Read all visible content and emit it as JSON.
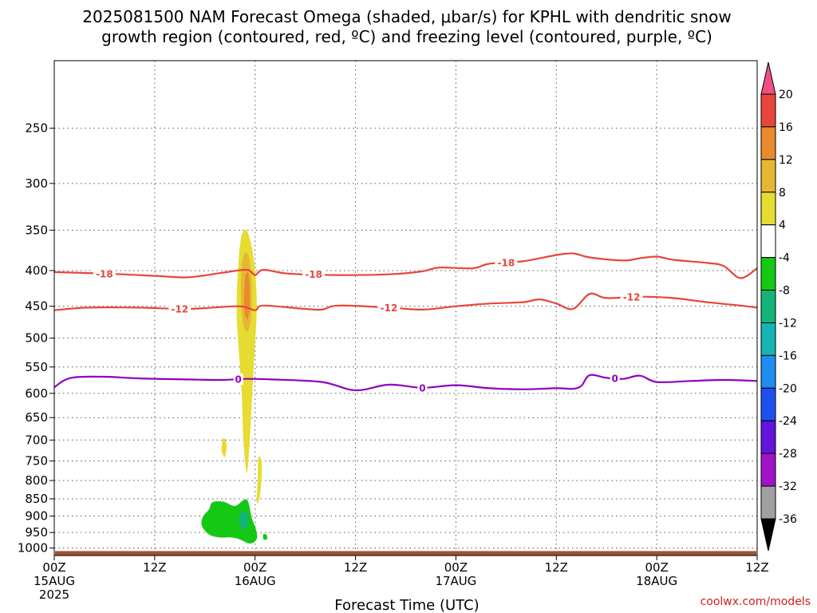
{
  "chart_data": {
    "type": "contour",
    "title_line1": "2025081500 NAM Forecast Omega (shaded, μbar/s) for KPHL with dendritic snow",
    "title_line2": "growth region (contoured, red, ºC) and freezing level (contoured, purple, ºC)",
    "xlabel": "Forecast Time (UTC)",
    "credit": "coolwx.com/models",
    "x_ticks": [
      {
        "hours": 0,
        "line1": "00Z",
        "line2": "15AUG",
        "line3": "2025"
      },
      {
        "hours": 12,
        "line1": "12Z",
        "line2": "",
        "line3": ""
      },
      {
        "hours": 24,
        "line1": "00Z",
        "line2": "16AUG",
        "line3": ""
      },
      {
        "hours": 36,
        "line1": "12Z",
        "line2": "",
        "line3": ""
      },
      {
        "hours": 48,
        "line1": "00Z",
        "line2": "17AUG",
        "line3": ""
      },
      {
        "hours": 60,
        "line1": "12Z",
        "line2": "",
        "line3": ""
      },
      {
        "hours": 72,
        "line1": "00Z",
        "line2": "18AUG",
        "line3": ""
      },
      {
        "hours": 84,
        "line1": "12Z",
        "line2": "",
        "line3": ""
      }
    ],
    "xlim_hours": [
      0,
      84
    ],
    "y_ticks_hpa": [
      250,
      300,
      350,
      400,
      450,
      500,
      550,
      600,
      650,
      700,
      750,
      800,
      850,
      900,
      950,
      1000
    ],
    "ylim_hpa": [
      200,
      1025
    ],
    "y_scale": "log",
    "grid": "dotted",
    "contours": [
      {
        "label": "-18",
        "color": "#e8453c",
        "label_positions_hours": [
          6,
          31,
          54
        ],
        "points": [
          [
            0,
            402
          ],
          [
            6,
            404
          ],
          [
            12,
            407
          ],
          [
            16,
            409
          ],
          [
            20,
            403
          ],
          [
            23,
            399
          ],
          [
            24,
            406
          ],
          [
            25,
            399
          ],
          [
            28,
            404
          ],
          [
            34,
            406
          ],
          [
            40,
            405
          ],
          [
            44,
            401
          ],
          [
            46,
            396
          ],
          [
            50,
            397
          ],
          [
            52,
            391
          ],
          [
            56,
            388
          ],
          [
            60,
            380
          ],
          [
            62,
            378
          ],
          [
            64,
            383
          ],
          [
            68,
            387
          ],
          [
            70,
            384
          ],
          [
            72,
            382
          ],
          [
            74,
            386
          ],
          [
            78,
            390
          ],
          [
            80,
            394
          ],
          [
            82,
            410
          ],
          [
            84,
            397
          ]
        ]
      },
      {
        "label": "-12",
        "color": "#e8453c",
        "label_positions_hours": [
          15,
          40,
          69
        ],
        "points": [
          [
            0,
            456
          ],
          [
            4,
            452
          ],
          [
            10,
            452
          ],
          [
            16,
            454
          ],
          [
            22,
            450
          ],
          [
            24,
            456
          ],
          [
            25,
            449
          ],
          [
            30,
            454
          ],
          [
            32,
            455
          ],
          [
            34,
            449
          ],
          [
            40,
            452
          ],
          [
            44,
            455
          ],
          [
            48,
            450
          ],
          [
            52,
            446
          ],
          [
            56,
            444
          ],
          [
            58,
            440
          ],
          [
            60,
            446
          ],
          [
            62,
            454
          ],
          [
            64,
            432
          ],
          [
            66,
            438
          ],
          [
            70,
            436
          ],
          [
            74,
            438
          ],
          [
            78,
            444
          ],
          [
            82,
            449
          ],
          [
            84,
            452
          ]
        ]
      },
      {
        "label": "0",
        "color": "#9000c0",
        "label_positions_hours": [
          22,
          44,
          67
        ],
        "points": [
          [
            0,
            588
          ],
          [
            2,
            570
          ],
          [
            6,
            568
          ],
          [
            10,
            571
          ],
          [
            16,
            573
          ],
          [
            20,
            574
          ],
          [
            23,
            572
          ],
          [
            26,
            573
          ],
          [
            32,
            578
          ],
          [
            36,
            594
          ],
          [
            40,
            583
          ],
          [
            44,
            589
          ],
          [
            48,
            584
          ],
          [
            52,
            590
          ],
          [
            56,
            592
          ],
          [
            60,
            590
          ],
          [
            62,
            591
          ],
          [
            63,
            585
          ],
          [
            64,
            565
          ],
          [
            66,
            570
          ],
          [
            68,
            572
          ],
          [
            70,
            566
          ],
          [
            72,
            578
          ],
          [
            76,
            576
          ],
          [
            80,
            574
          ],
          [
            84,
            576
          ]
        ]
      }
    ],
    "shaded_regions": [
      {
        "value_range": [
          4,
          8
        ],
        "color": "#e6dc32",
        "points": [
          [
            22.3,
            360
          ],
          [
            22.9,
            350
          ],
          [
            23.5,
            365
          ],
          [
            24.0,
            400
          ],
          [
            24.2,
            455
          ],
          [
            23.9,
            530
          ],
          [
            23.6,
            620
          ],
          [
            23.3,
            720
          ],
          [
            23.0,
            780
          ],
          [
            22.6,
            700
          ],
          [
            22.4,
            600
          ],
          [
            22.0,
            510
          ],
          [
            21.8,
            460
          ],
          [
            21.9,
            410
          ]
        ]
      },
      {
        "value_range": [
          4,
          8
        ],
        "color": "#e6dc32",
        "points": [
          [
            20.2,
            695
          ],
          [
            20.6,
            710
          ],
          [
            20.4,
            740
          ],
          [
            20.0,
            725
          ]
        ]
      },
      {
        "value_range": [
          4,
          8
        ],
        "color": "#e6dc32",
        "points": [
          [
            24.4,
            740
          ],
          [
            24.8,
            760
          ],
          [
            24.6,
            840
          ],
          [
            24.2,
            860
          ],
          [
            24.3,
            800
          ]
        ]
      },
      {
        "value_range": [
          8,
          12
        ],
        "color": "#e6b832",
        "points": [
          [
            22.5,
            385
          ],
          [
            23.2,
            380
          ],
          [
            23.6,
            420
          ],
          [
            23.5,
            470
          ],
          [
            23.0,
            490
          ],
          [
            22.5,
            470
          ],
          [
            22.3,
            430
          ]
        ]
      },
      {
        "value_range": [
          12,
          16
        ],
        "color": "#ea8a2e",
        "points": [
          [
            22.8,
            410
          ],
          [
            23.2,
            405
          ],
          [
            23.4,
            440
          ],
          [
            23.1,
            470
          ],
          [
            22.7,
            455
          ]
        ]
      },
      {
        "value_range": [
          -8,
          -4
        ],
        "color": "#14c814",
        "points": [
          [
            17.8,
            900
          ],
          [
            18.5,
            880
          ],
          [
            18.9,
            860
          ],
          [
            20.2,
            858
          ],
          [
            21.6,
            870
          ],
          [
            23.0,
            852
          ],
          [
            23.6,
            905
          ],
          [
            24.1,
            940
          ],
          [
            24.2,
            970
          ],
          [
            23.4,
            985
          ],
          [
            22.0,
            970
          ],
          [
            21.0,
            965
          ],
          [
            20.0,
            966
          ],
          [
            19.0,
            962
          ],
          [
            18.2,
            950
          ],
          [
            17.6,
            925
          ]
        ]
      },
      {
        "value_range": [
          -8,
          -4
        ],
        "color": "#14c814",
        "points": [
          [
            25.0,
            955
          ],
          [
            25.4,
            958
          ],
          [
            25.4,
            972
          ],
          [
            25.0,
            970
          ]
        ]
      },
      {
        "value_range": [
          -12,
          -8
        ],
        "color": "#14b478",
        "points": [
          [
            22.2,
            895
          ],
          [
            22.8,
            885
          ],
          [
            23.2,
            905
          ],
          [
            23.0,
            935
          ],
          [
            22.5,
            940
          ],
          [
            22.1,
            920
          ]
        ]
      }
    ],
    "surface": {
      "color": "#a0522d",
      "top_hpa": 1010
    },
    "colorbar": {
      "labels": [
        "20",
        "16",
        "12",
        "8",
        "4",
        "-4",
        "-8",
        "-12",
        "-16",
        "-20",
        "-24",
        "-28",
        "-32",
        "-36"
      ],
      "colors": [
        "#f05080",
        "#e8463c",
        "#ea8a2e",
        "#e6b832",
        "#e6dc32",
        "#ffffff",
        "#14c814",
        "#14b478",
        "#14b4b4",
        "#1e8cf0",
        "#1e50f0",
        "#6414dc",
        "#a014c8",
        "#a0a0a0",
        "#000000"
      ]
    }
  }
}
